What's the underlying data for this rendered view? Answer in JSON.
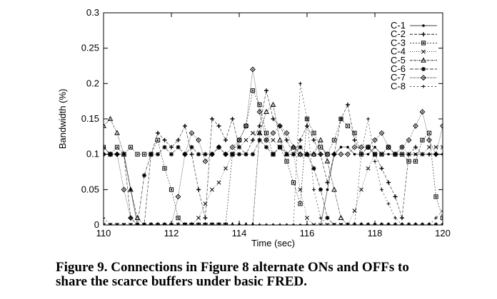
{
  "chart_data": {
    "type": "line",
    "xlabel": "Time (sec)",
    "ylabel": "Bandwidth (%)",
    "xlim": [
      110,
      120
    ],
    "ylim": [
      0,
      0.3
    ],
    "x_ticks": [
      "110",
      "112",
      "114",
      "116",
      "118",
      "120"
    ],
    "y_ticks": [
      "0",
      "0.05",
      "0.1",
      "0.15",
      "0.2",
      "0.25",
      "0.3"
    ],
    "legend_position": "top-right",
    "grid": false,
    "series": [
      {
        "name": "C-1",
        "marker": "dot",
        "x": [
          110,
          110.2,
          110.4,
          110.6,
          110.8,
          111,
          111.2,
          111.4,
          111.6,
          111.8,
          112,
          112.2,
          112.4,
          112.6,
          112.8,
          113,
          113.2,
          113.4,
          113.6,
          113.8,
          114,
          114.2,
          114.4,
          114.6,
          114.8,
          115,
          115.2,
          115.4,
          115.6,
          115.8,
          116,
          116.2,
          116.4,
          116.6,
          116.8,
          117,
          117.2,
          117.4,
          117.6,
          117.8,
          118,
          118.2,
          118.4,
          118.6,
          118.8,
          119,
          119.2,
          119.4,
          119.6,
          119.8,
          120
        ],
        "y": [
          0.1,
          0.1,
          0.1,
          0.1,
          0.05,
          0,
          0,
          0,
          0,
          0,
          0,
          0,
          0,
          0,
          0,
          0,
          0,
          0,
          0,
          0,
          0,
          0,
          0,
          0,
          0,
          0,
          0,
          0,
          0,
          0,
          0,
          0,
          0,
          0.05,
          0.1,
          0.11,
          0.11,
          0.1,
          0.1,
          0.1,
          0.11,
          0.1,
          0.1,
          0.1,
          0.1,
          0.1,
          0.1,
          0.1,
          0.1,
          0.1,
          0.1
        ]
      },
      {
        "name": "C-2",
        "marker": "plus",
        "x": [
          110,
          110.2,
          110.4,
          110.6,
          110.8,
          111,
          111.2,
          111.4,
          111.6,
          111.8,
          112,
          112.2,
          112.4,
          112.6,
          112.8,
          113,
          113.2,
          113.4,
          113.6,
          113.8,
          114,
          114.2,
          114.4,
          114.6,
          114.8,
          115,
          115.2,
          115.4,
          115.6,
          115.8,
          116,
          116.2,
          116.4,
          116.6,
          116.8,
          117,
          117.2,
          117.4,
          117.6,
          117.8,
          118,
          118.2,
          118.4,
          118.6,
          118.8,
          119,
          119.2,
          119.4,
          119.6,
          119.8,
          120
        ],
        "y": [
          0.11,
          0.1,
          0.1,
          0.1,
          0.01,
          0,
          0,
          0.1,
          0.13,
          0.12,
          0.11,
          0.12,
          0.14,
          0.1,
          0.05,
          0.01,
          0.15,
          0.14,
          0.12,
          0.15,
          0.11,
          0.1,
          0.12,
          0.14,
          0.19,
          0.15,
          0.14,
          0.12,
          0.1,
          0.12,
          0.14,
          0.12,
          0.1,
          0.06,
          0.1,
          0.15,
          0.17,
          0.12,
          0.1,
          0.11,
          0.1,
          0.08,
          0.06,
          0.04,
          0.01,
          0.1,
          0.11,
          0.1,
          0.1,
          0.1,
          0.1
        ]
      },
      {
        "name": "C-3",
        "marker": "square",
        "x": [
          110,
          110.2,
          110.4,
          110.6,
          110.8,
          111,
          111.2,
          111.4,
          111.6,
          111.8,
          112,
          112.2,
          112.4,
          112.6,
          112.8,
          113,
          113.2,
          113.4,
          113.6,
          113.8,
          114,
          114.2,
          114.4,
          114.6,
          114.8,
          115,
          115.2,
          115.4,
          115.6,
          115.8,
          116,
          116.2,
          116.4,
          116.6,
          116.8,
          117,
          117.2,
          117.4,
          117.6,
          117.8,
          118,
          118.2,
          118.4,
          118.6,
          118.8,
          119,
          119.2,
          119.4,
          119.6,
          119.8,
          120
        ],
        "y": [
          0.11,
          0.1,
          0.11,
          0.1,
          0.11,
          0.1,
          0.1,
          0.1,
          0.12,
          0.08,
          0.05,
          0.01,
          0,
          0,
          0,
          0,
          0,
          0,
          0,
          0.1,
          0.12,
          0.14,
          0.19,
          0.17,
          0.13,
          0.1,
          0.11,
          0.09,
          0.06,
          0.03,
          0.15,
          0.13,
          0.11,
          0.1,
          0.12,
          0.15,
          0.14,
          0.13,
          0.1,
          0.11,
          0.1,
          0.1,
          0.11,
          0.1,
          0.1,
          0.09,
          0.09,
          0.12,
          0.13,
          0.04,
          0.01
        ]
      },
      {
        "name": "C-4",
        "marker": "x",
        "x": [
          110,
          110.2,
          110.4,
          110.6,
          110.8,
          111,
          111.2,
          111.4,
          111.6,
          111.8,
          112,
          112.2,
          112.4,
          112.6,
          112.8,
          113,
          113.2,
          113.4,
          113.6,
          113.8,
          114,
          114.2,
          114.4,
          114.6,
          114.8,
          115,
          115.2,
          115.4,
          115.6,
          115.8,
          116,
          116.2,
          116.4,
          116.6,
          116.8,
          117,
          117.2,
          117.4,
          117.6,
          117.8,
          118,
          118.2,
          118.4,
          118.6,
          118.8,
          119,
          119.2,
          119.4,
          119.6,
          119.8,
          120
        ],
        "y": [
          0,
          0,
          0,
          0,
          0,
          0,
          0,
          0,
          0,
          0,
          0,
          0,
          0,
          0,
          0.01,
          0.03,
          0.05,
          0.06,
          0.08,
          0.1,
          0.11,
          0.12,
          0.13,
          0.13,
          0.12,
          0.12,
          0.11,
          0.1,
          0.1,
          0.05,
          0.01,
          0,
          0,
          0,
          0,
          0,
          0,
          0.02,
          0.05,
          0.08,
          0.1,
          0.1,
          0.11,
          0.1,
          0.11,
          0.1,
          0.1,
          0.1,
          0.11,
          0.11,
          0.11
        ]
      },
      {
        "name": "C-5",
        "marker": "triangle",
        "x": [
          110,
          110.2,
          110.4,
          110.6,
          110.8,
          111,
          111.2,
          111.4,
          111.6,
          111.8,
          112,
          112.2,
          112.4,
          112.6,
          112.8,
          113,
          113.2,
          113.4,
          113.6,
          113.8,
          114,
          114.2,
          114.4,
          114.6,
          114.8,
          115,
          115.2,
          115.4,
          115.6,
          115.8,
          116,
          116.2,
          116.4,
          116.6,
          116.8,
          117,
          117.2,
          117.4,
          117.6,
          117.8,
          118,
          118.2,
          118.4,
          118.6,
          118.8,
          119,
          119.2,
          119.4,
          119.6,
          119.8,
          120
        ],
        "y": [
          0.14,
          0.15,
          0.13,
          0.1,
          0.05,
          0.01,
          0,
          0,
          0,
          0,
          0,
          0,
          0,
          0,
          0,
          0,
          0,
          0,
          0,
          0,
          0,
          0,
          0,
          0.13,
          0.16,
          0.17,
          0.12,
          0.1,
          0.11,
          0.1,
          0.1,
          0.1,
          0.12,
          0.09,
          0.05,
          0.01,
          0,
          0,
          0,
          0,
          0,
          0,
          0,
          0,
          0,
          0,
          0,
          0,
          0,
          0,
          0
        ]
      },
      {
        "name": "C-6",
        "marker": "star",
        "x": [
          110,
          110.2,
          110.4,
          110.6,
          110.8,
          111,
          111.2,
          111.4,
          111.6,
          111.8,
          112,
          112.2,
          112.4,
          112.6,
          112.8,
          113,
          113.2,
          113.4,
          113.6,
          113.8,
          114,
          114.2,
          114.4,
          114.6,
          114.8,
          115,
          115.2,
          115.4,
          115.6,
          115.8,
          116,
          116.2,
          116.4,
          116.6,
          116.8,
          117,
          117.2,
          117.4,
          117.6,
          117.8,
          118,
          118.2,
          118.4,
          118.6,
          118.8,
          119,
          119.2,
          119.4,
          119.6,
          119.8,
          120
        ],
        "y": [
          0,
          0,
          0,
          0,
          0,
          0,
          0.07,
          0.1,
          0.1,
          0.11,
          0.1,
          0.11,
          0.1,
          0.11,
          0.1,
          0.1,
          0.1,
          0.11,
          0.1,
          0.1,
          0.1,
          0.1,
          0.1,
          0.12,
          0.11,
          0.1,
          0.11,
          0.1,
          0.1,
          0.11,
          0.1,
          0.08,
          0.05,
          0.01,
          0,
          0,
          0,
          0,
          0,
          0,
          0,
          0,
          0,
          0,
          0,
          0,
          0,
          0,
          0,
          0,
          0
        ]
      },
      {
        "name": "C-7",
        "marker": "diamond",
        "x": [
          110,
          110.2,
          110.4,
          110.6,
          110.8,
          111,
          111.2,
          111.4,
          111.6,
          111.8,
          112,
          112.2,
          112.4,
          112.6,
          112.8,
          113,
          113.2,
          113.4,
          113.6,
          113.8,
          114,
          114.2,
          114.4,
          114.6,
          114.8,
          115,
          115.2,
          115.4,
          115.6,
          115.8,
          116,
          116.2,
          116.4,
          116.6,
          116.8,
          117,
          117.2,
          117.4,
          117.6,
          117.8,
          118,
          118.2,
          118.4,
          118.6,
          118.8,
          119,
          119.2,
          119.4,
          119.6,
          119.8,
          120
        ],
        "y": [
          0.1,
          0.1,
          0.1,
          0.05,
          0.01,
          0,
          0,
          0,
          0,
          0,
          0,
          0.04,
          0.1,
          0.13,
          0.12,
          0.09,
          0.1,
          0.11,
          0.1,
          0.11,
          0.12,
          0.14,
          0.22,
          0.16,
          0.12,
          0.13,
          0.14,
          0.13,
          0.11,
          0.1,
          0.1,
          0.1,
          0.1,
          0.1,
          0.1,
          0.1,
          0.1,
          0.11,
          0.11,
          0.11,
          0.12,
          0.13,
          0.11,
          0.1,
          0.11,
          0.12,
          0.14,
          0.16,
          0.12,
          0.1,
          0.14
        ]
      },
      {
        "name": "C-8",
        "marker": "small-plus",
        "x": [
          110,
          110.2,
          110.4,
          110.6,
          110.8,
          111,
          111.2,
          111.4,
          111.6,
          111.8,
          112,
          112.2,
          112.4,
          112.6,
          112.8,
          113,
          113.2,
          113.4,
          113.6,
          113.8,
          114,
          114.2,
          114.4,
          114.6,
          114.8,
          115,
          115.2,
          115.4,
          115.6,
          115.8,
          116,
          116.2,
          116.4,
          116.6,
          116.8,
          117,
          117.2,
          117.4,
          117.6,
          117.8,
          118,
          118.2,
          118.4,
          118.6,
          118.8,
          119,
          119.2,
          119.4,
          119.6,
          119.8,
          120
        ],
        "y": [
          0.01,
          0,
          0,
          0,
          0,
          0,
          0,
          0,
          0,
          0,
          0,
          0,
          0,
          0,
          0,
          0,
          0,
          0,
          0,
          0,
          0,
          0,
          0,
          0,
          0,
          0,
          0,
          0,
          0,
          0.2,
          0.15,
          0.05,
          0.01,
          0,
          0,
          0,
          0,
          0,
          0.1,
          0.15,
          0.09,
          0.05,
          0.03,
          0.01,
          0,
          0,
          0,
          0,
          0,
          0.01,
          0.02
        ]
      }
    ]
  },
  "caption": {
    "line1": "Figure 9.  Connections in Figure 8 alternate ONs and OFFs to",
    "line2": "share the scarce buffers under basic FRED."
  }
}
